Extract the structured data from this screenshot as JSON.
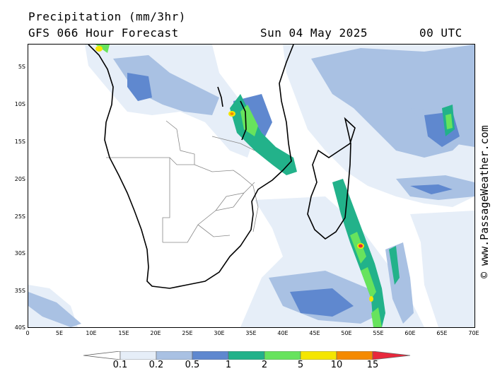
{
  "header": {
    "title": "Precipitation (mm/3hr)",
    "subtitle": "GFS 066 Hour Forecast",
    "date": "Sun 04 May 2025",
    "time": "00 UTC"
  },
  "map": {
    "lat_labels": [
      "5S",
      "10S",
      "15S",
      "20S",
      "25S",
      "30S",
      "35S",
      "40S"
    ],
    "lon_labels": [
      "0",
      "5E",
      "10E",
      "15E",
      "20E",
      "25E",
      "30E",
      "35E",
      "40E",
      "45E",
      "50E",
      "55E",
      "60E",
      "65E",
      "70E"
    ],
    "extent": {
      "lon_min": 0,
      "lon_max": 70,
      "lat_min": -40,
      "lat_max": -2
    }
  },
  "watermark": "© www.PassageWeather.com",
  "colorbar": {
    "labels": [
      "0.1",
      "0.2",
      "0.5",
      "1",
      "2",
      "5",
      "10",
      "15"
    ],
    "colors": [
      "#ffffff",
      "#e6eef8",
      "#a9c1e3",
      "#5f88cf",
      "#22b28a",
      "#67e35d",
      "#f5e600",
      "#f58a00",
      "#e8283c"
    ]
  }
}
